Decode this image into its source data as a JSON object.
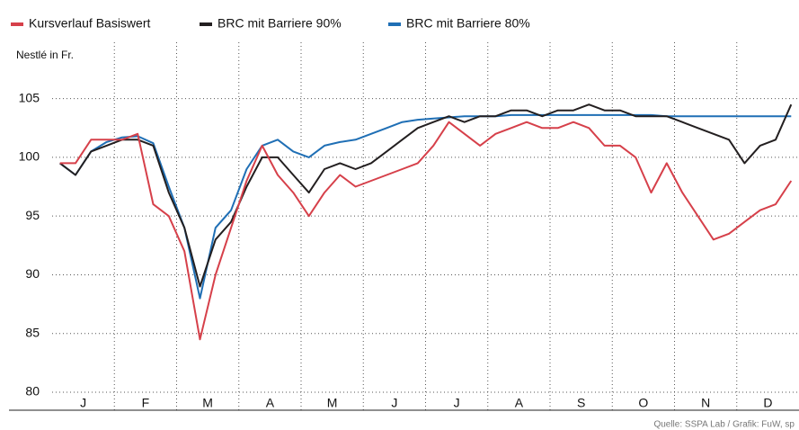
{
  "chart_data": {
    "type": "line",
    "y_label": "Nestlé in Fr.",
    "source": "Quelle: SSPA Lab / Grafik: FuW, sp",
    "categories": [
      null,
      "J",
      null,
      null,
      null,
      "F",
      null,
      null,
      null,
      "M",
      null,
      null,
      null,
      "A",
      null,
      null,
      null,
      "M",
      null,
      null,
      null,
      "J",
      null,
      null,
      null,
      "J",
      null,
      null,
      null,
      "A",
      null,
      null,
      null,
      "S",
      null,
      null,
      null,
      "O",
      null,
      null,
      null,
      "N",
      null,
      null,
      null,
      "D",
      null,
      null
    ],
    "series": [
      {
        "name": "Kursverlauf Basiswert",
        "color": "#d6404a",
        "values": [
          99.5,
          99.5,
          101.5,
          101.5,
          101.5,
          102,
          96,
          95,
          92,
          84.5,
          90,
          94,
          98,
          101,
          98.5,
          97,
          95,
          97,
          98.5,
          97.5,
          98,
          98.5,
          99,
          99.5,
          101,
          103,
          102,
          101,
          102,
          102.5,
          103,
          102.5,
          102.5,
          103,
          102.5,
          101,
          101,
          100,
          97,
          99.5,
          97,
          95,
          93,
          93.5,
          94.5,
          95.5,
          96,
          98
        ]
      },
      {
        "name": "BRC mit Barriere 90%",
        "color": "#231f20",
        "values": [
          99.5,
          98.5,
          100.5,
          101,
          101.5,
          101.5,
          101,
          97,
          94,
          89,
          93,
          94.5,
          97.5,
          100,
          100,
          98.5,
          97,
          99,
          99.5,
          99,
          99.5,
          100.5,
          101.5,
          102.5,
          103,
          103.5,
          103,
          103.5,
          103.5,
          104,
          104,
          103.5,
          104,
          104,
          104.5,
          104,
          104,
          103.5,
          103.5,
          103.5,
          103,
          102.5,
          102,
          101.5,
          99.5,
          101,
          101.5,
          104.5
        ]
      },
      {
        "name": "BRC mit Barriere 80%",
        "color": "#1f6fb5",
        "values": [
          99.5,
          98.5,
          100.5,
          101.3,
          101.7,
          101.8,
          101.2,
          97.5,
          94,
          88,
          94,
          95.5,
          99,
          101,
          101.5,
          100.5,
          100,
          101,
          101.3,
          101.5,
          102,
          102.5,
          103,
          103.2,
          103.3,
          103.4,
          103.5,
          103.5,
          103.5,
          103.6,
          103.6,
          103.6,
          103.6,
          103.6,
          103.6,
          103.6,
          103.6,
          103.6,
          103.6,
          103.5,
          103.5,
          103.5,
          103.5,
          103.5,
          103.5,
          103.5,
          103.5,
          103.5
        ]
      }
    ],
    "ylim": [
      80,
      107.5
    ],
    "yticks": [
      80,
      85,
      90,
      95,
      100,
      105
    ],
    "grid": true
  }
}
